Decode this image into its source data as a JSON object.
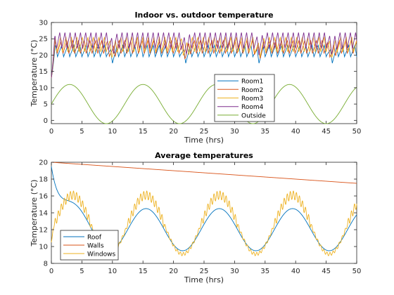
{
  "colors": {
    "Room1": "#0072BD",
    "Room2": "#D95319",
    "Room3": "#EDB120",
    "Room4": "#7E2F8E",
    "Outside": "#77AC30",
    "Roof": "#0072BD",
    "Walls": "#D95319",
    "Windows": "#EDB120",
    "axis": "#262626",
    "grid": "#ffffff"
  },
  "chart_data": [
    {
      "type": "line",
      "title": "Indoor vs. outdoor temperature",
      "xlabel": "Time (hrs)",
      "ylabel": "Temperature (°C)",
      "xlim": [
        0,
        50
      ],
      "ylim": [
        -1,
        30
      ],
      "xticks": [
        0,
        5,
        10,
        15,
        20,
        25,
        30,
        35,
        40,
        45,
        50
      ],
      "yticks": [
        0,
        5,
        10,
        15,
        20,
        25,
        30
      ],
      "legend": {
        "placement": "lower-right-center",
        "entries": [
          "Room1",
          "Room2",
          "Room3",
          "Room4",
          "Outside"
        ]
      },
      "series": [
        {
          "name": "Room1",
          "model": {
            "kind": "sawtooth",
            "start": 13,
            "low": 19.5,
            "high": 23,
            "period": 1.0,
            "rise": 0.7,
            "dips": [
              10,
              22,
              34,
              46
            ]
          }
        },
        {
          "name": "Room2",
          "model": {
            "kind": "sawtooth",
            "start": 13,
            "low": 20.5,
            "high": 24.5,
            "period": 0.95,
            "rise": 0.68,
            "dips": [
              10,
              22,
              34,
              46
            ]
          }
        },
        {
          "name": "Room3",
          "model": {
            "kind": "sawtooth",
            "start": 13,
            "low": 21,
            "high": 25.5,
            "period": 0.9,
            "rise": 0.66,
            "dips": [
              10,
              22,
              34,
              46
            ]
          }
        },
        {
          "name": "Room4",
          "model": {
            "kind": "sawtooth",
            "start": 13,
            "low": 22,
            "high": 27,
            "period": 0.85,
            "rise": 0.62,
            "dips": [
              10,
              22,
              34,
              46
            ]
          }
        },
        {
          "name": "Outside",
          "model": {
            "kind": "sine",
            "mean": 5,
            "amp": 6,
            "period": 12,
            "peak_at": 3
          }
        }
      ]
    },
    {
      "type": "line",
      "title": "Average temperatures",
      "xlabel": "Time (hrs)",
      "ylabel": "Temperature (°C)",
      "xlim": [
        0,
        50
      ],
      "ylim": [
        8,
        20
      ],
      "xticks": [
        0,
        5,
        10,
        15,
        20,
        25,
        30,
        35,
        40,
        45,
        50
      ],
      "yticks": [
        8,
        10,
        12,
        14,
        16,
        18,
        20
      ],
      "legend": {
        "placement": "lower-left",
        "entries": [
          "Roof",
          "Walls",
          "Windows"
        ]
      },
      "series": [
        {
          "name": "Roof",
          "model": {
            "kind": "damped-sine",
            "start": 19.5,
            "mean": 12,
            "amp": 2.5,
            "period": 12,
            "peak_at": 3.5,
            "decay": 1.8
          }
        },
        {
          "name": "Walls",
          "model": {
            "kind": "linear",
            "points": [
              [
                0,
                20
              ],
              [
                50,
                17.5
              ]
            ]
          }
        },
        {
          "name": "Windows",
          "model": {
            "kind": "noisy-sine",
            "mean": 12.6,
            "amp": 3.5,
            "period": 12,
            "peak_at": 3.5,
            "ripple": 0.5,
            "ripple_period": 0.5
          }
        }
      ]
    }
  ]
}
